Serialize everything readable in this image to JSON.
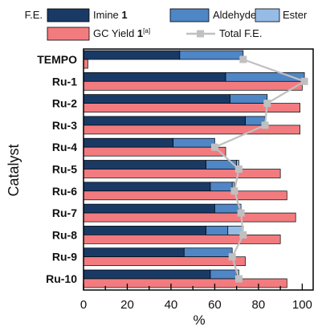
{
  "chart_data": {
    "type": "bar",
    "orientation": "horizontal",
    "ylabel": "Catalyst",
    "xlabel": "%",
    "xlim": [
      0,
      105
    ],
    "xticks": [
      0,
      20,
      40,
      60,
      80,
      100
    ],
    "grid": false,
    "legend_placement": "top",
    "legend": {
      "prefix": "F.E.",
      "imine_label": "Imine ",
      "imine_bold": "1",
      "aldehyde_label": "Aldehyde",
      "ester_label": "Ester",
      "gc_label": "GC Yield ",
      "gc_bold": "1",
      "gc_sup": "[a]",
      "total_label": "Total F.E."
    },
    "categories": [
      "TEMPO",
      "Ru-1",
      "Ru-2",
      "Ru-3",
      "Ru-4",
      "Ru-5",
      "Ru-6",
      "Ru-7",
      "Ru-8",
      "Ru-9",
      "Ru-10"
    ],
    "series": [
      {
        "name": "Imine 1",
        "role": "fe_stack",
        "color": "#1a3a66",
        "values": [
          44,
          65,
          67,
          74,
          41,
          56,
          58,
          60,
          56,
          46,
          58
        ]
      },
      {
        "name": "Aldehyde",
        "role": "fe_stack",
        "color": "#4e86c6",
        "values": [
          29,
          36,
          17,
          9,
          19,
          14,
          10,
          11,
          10,
          22,
          12
        ]
      },
      {
        "name": "Ester",
        "role": "fe_stack",
        "color": "#96bce6",
        "values": [
          0,
          0,
          0,
          0,
          0,
          1,
          1,
          1,
          7,
          0,
          1
        ]
      },
      {
        "name": "GC Yield 1",
        "role": "yield_bar",
        "color": "#f27b7f",
        "values": [
          2,
          100,
          99,
          99,
          65,
          90,
          93,
          97,
          90,
          74,
          93
        ]
      },
      {
        "name": "Total F.E.",
        "role": "total_line",
        "color": "#c0c0c0",
        "values": [
          73,
          101,
          84,
          83,
          60,
          71,
          69,
          72,
          73,
          68,
          71
        ]
      }
    ]
  }
}
